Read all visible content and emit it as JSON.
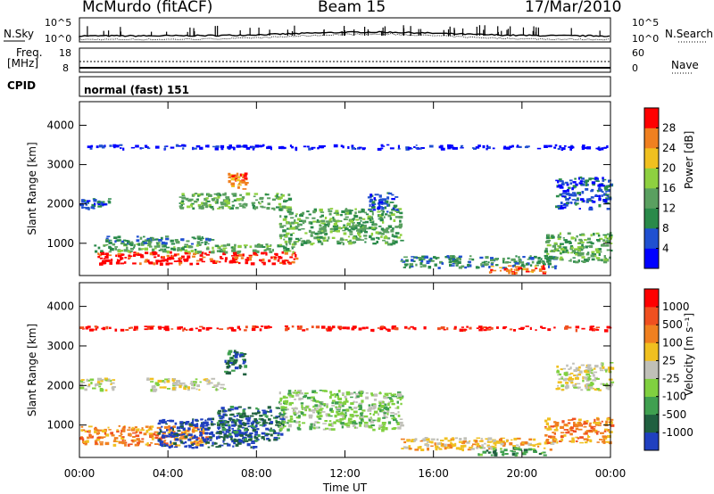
{
  "header": {
    "station": "McMurdo (fitACF)",
    "beam": "Beam 15",
    "date": "17/Mar/2010"
  },
  "status_panels": {
    "nsky_label": "N.Sky",
    "nsky_top": "10^5",
    "nsky_bottom": "10^0",
    "nsky_right_top": "10^5",
    "nsky_right_bottom": "10^0",
    "nsearch_label": "N.Search",
    "freq_label": "Freq.",
    "freq_unit": "[MHz]",
    "freq_top": "18",
    "freq_bottom": "8",
    "nave_top": "60",
    "nave_bottom": "0",
    "nave_label": "Nave",
    "cpid_label": "CPID",
    "cpid_value": "normal (fast) 151"
  },
  "chart_data": [
    {
      "type": "heatmap",
      "name": "power",
      "ylabel": "Slant Range [km]",
      "xlabel": "Time UT",
      "yticks": [
        "1000",
        "2000",
        "3000",
        "4000"
      ],
      "xticks": [
        "00:00",
        "04:00",
        "08:00",
        "12:00",
        "16:00",
        "20:00",
        "00:00"
      ],
      "ylim": [
        180,
        4600
      ],
      "xlim": [
        0,
        24
      ],
      "colorbar_label": "Power [dB]",
      "colorbar_ticks": [
        "4",
        "8",
        "12",
        "16",
        "20",
        "24",
        "28"
      ],
      "colorbar_colors": [
        "#0000ff",
        "#2050d0",
        "#2a8a4a",
        "#5aa060",
        "#8ed040",
        "#f0c020",
        "#f08020",
        "#ff0000"
      ],
      "regions": [
        {
          "t": [
            0.8,
            9.8
          ],
          "r": [
            500,
            800
          ],
          "level": 7
        },
        {
          "t": [
            0.6,
            9.8
          ],
          "r": [
            800,
            1000
          ],
          "level": 3
        },
        {
          "t": [
            1.0,
            6.0
          ],
          "r": [
            1000,
            1200
          ],
          "level": 2
        },
        {
          "t": [
            0.0,
            1.3
          ],
          "r": [
            1900,
            2150
          ],
          "level": 1
        },
        {
          "t": [
            4.5,
            9.5
          ],
          "r": [
            1900,
            2300
          ],
          "level": 3
        },
        {
          "t": [
            6.7,
            7.5
          ],
          "r": [
            2400,
            2800
          ],
          "level": 6
        },
        {
          "t": [
            9.0,
            14.5
          ],
          "r": [
            1000,
            1900
          ],
          "level": 3
        },
        {
          "t": [
            13.0,
            14.5
          ],
          "r": [
            1800,
            2300
          ],
          "level": 1
        },
        {
          "t": [
            14.5,
            21.5
          ],
          "r": [
            400,
            700
          ],
          "level": 2
        },
        {
          "t": [
            18.5,
            21.2
          ],
          "r": [
            250,
            450
          ],
          "level": 6
        },
        {
          "t": [
            21.0,
            24.0
          ],
          "r": [
            550,
            1300
          ],
          "level": 3
        },
        {
          "t": [
            21.5,
            24.0
          ],
          "r": [
            1900,
            2700
          ],
          "level": 1
        },
        {
          "t": [
            0.0,
            24.0
          ],
          "r": [
            3420,
            3520
          ],
          "level": 0
        }
      ]
    },
    {
      "type": "heatmap",
      "name": "velocity",
      "ylabel": "Slant Range [km]",
      "xlabel": "Time UT",
      "yticks": [
        "1000",
        "2000",
        "3000",
        "4000"
      ],
      "xticks": [
        "00:00",
        "04:00",
        "08:00",
        "12:00",
        "16:00",
        "20:00",
        "00:00"
      ],
      "ylim": [
        180,
        4600
      ],
      "xlim": [
        0,
        24
      ],
      "colorbar_label": "Velocity [m s⁻¹]",
      "colorbar_ticks": [
        "1000",
        "500",
        "100",
        "25",
        "-25",
        "-100",
        "-500",
        "-1000"
      ],
      "colorbar_colors": [
        "#2040c0",
        "#206040",
        "#40a050",
        "#80d040",
        "#c0c0b8",
        "#f0c020",
        "#f08020",
        "#f05020",
        "#ff0000"
      ],
      "regions": [
        {
          "t": [
            0.0,
            5.8
          ],
          "r": [
            500,
            1000
          ],
          "level": 6
        },
        {
          "t": [
            3.5,
            8.0
          ],
          "r": [
            450,
            1200
          ],
          "level": 0
        },
        {
          "t": [
            6.2,
            9.2
          ],
          "r": [
            600,
            1500
          ],
          "level": 1
        },
        {
          "t": [
            0.0,
            1.5
          ],
          "r": [
            1900,
            2200
          ],
          "level": 4
        },
        {
          "t": [
            3.0,
            6.5
          ],
          "r": [
            1900,
            2200
          ],
          "level": 4
        },
        {
          "t": [
            6.5,
            7.5
          ],
          "r": [
            2300,
            2900
          ],
          "level": 1
        },
        {
          "t": [
            9.0,
            14.5
          ],
          "r": [
            900,
            1900
          ],
          "level": 3
        },
        {
          "t": [
            14.5,
            21.5
          ],
          "r": [
            400,
            700
          ],
          "level": 5
        },
        {
          "t": [
            18.0,
            21.0
          ],
          "r": [
            250,
            450
          ],
          "level": 2
        },
        {
          "t": [
            21.0,
            24.0
          ],
          "r": [
            550,
            1200
          ],
          "level": 6
        },
        {
          "t": [
            21.5,
            24.0
          ],
          "r": [
            1900,
            2600
          ],
          "level": 4
        },
        {
          "t": [
            0.0,
            24.0
          ],
          "r": [
            3420,
            3520
          ],
          "level": 8
        }
      ]
    }
  ]
}
